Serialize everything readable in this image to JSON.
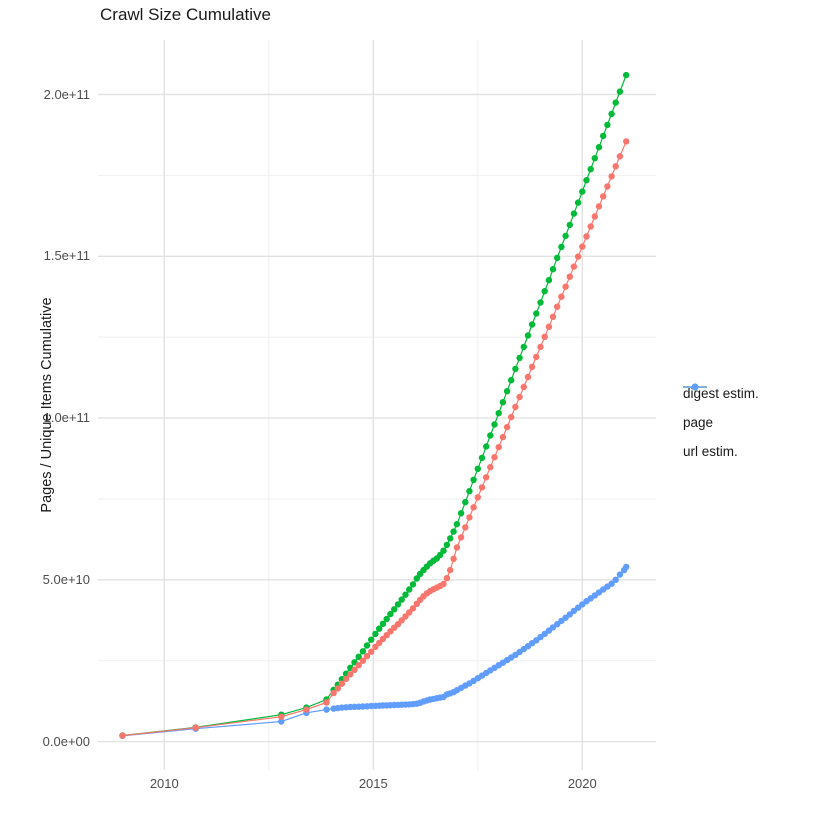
{
  "title": "Crawl Size Cumulative",
  "axes": {
    "y_title": "Pages / Unique Items Cumulative",
    "y_tick_labels": [
      "0.0e+00",
      "5.0e+10",
      "1.0e+11",
      "1.5e+11",
      "2.0e+11"
    ],
    "x_tick_labels": [
      "2010",
      "2015",
      "2020"
    ]
  },
  "legend": {
    "items": [
      {
        "label": "digest estim.",
        "color": "#F8766D"
      },
      {
        "label": "page",
        "color": "#00BA38"
      },
      {
        "label": "url estim.",
        "color": "#619CFF"
      }
    ]
  },
  "chart_data": {
    "type": "scatter",
    "title": "Crawl Size Cumulative",
    "xlabel": "",
    "ylabel": "Pages / Unique Items Cumulative",
    "x_unit": "year (monthly crawls)",
    "value_scale": 1000000000.0,
    "xlim": [
      2008.6,
      2021.75
    ],
    "ylim": [
      0,
      217000000000.0
    ],
    "x_ticks": [
      2010,
      2015,
      2020
    ],
    "x_minor_ticks": [
      2012.5,
      2017.5
    ],
    "y_ticks_e9": [
      0,
      50,
      100,
      150,
      200
    ],
    "y_minor_ticks_e9": [
      25,
      75,
      125,
      175
    ],
    "grid": true,
    "legend_position": "right",
    "marker": "point-with-line",
    "series": [
      {
        "name": "digest estim.",
        "color": "#F8766D",
        "points": [
          [
            2009.0,
            1.85
          ],
          [
            2010.75,
            4.3
          ],
          [
            2012.8,
            7.7
          ],
          [
            2013.4,
            9.9
          ],
          [
            2013.88,
            12.1
          ],
          [
            2014.05,
            15.0
          ],
          [
            2014.15,
            16.4
          ],
          [
            2014.25,
            17.9
          ],
          [
            2014.35,
            19.4
          ],
          [
            2014.45,
            20.8
          ],
          [
            2014.55,
            22.2
          ],
          [
            2014.65,
            23.6
          ],
          [
            2014.75,
            25.0
          ],
          [
            2014.85,
            26.4
          ],
          [
            2014.95,
            27.8
          ],
          [
            2015.05,
            29.3
          ],
          [
            2015.14,
            30.5
          ],
          [
            2015.23,
            31.7
          ],
          [
            2015.32,
            32.9
          ],
          [
            2015.41,
            34.1
          ],
          [
            2015.5,
            35.2
          ],
          [
            2015.59,
            36.3
          ],
          [
            2015.68,
            37.5
          ],
          [
            2015.77,
            38.7
          ],
          [
            2015.86,
            39.9
          ],
          [
            2015.95,
            41.2
          ],
          [
            2016.04,
            42.6
          ],
          [
            2016.12,
            43.8
          ],
          [
            2016.2,
            44.9
          ],
          [
            2016.28,
            45.8
          ],
          [
            2016.36,
            46.5
          ],
          [
            2016.44,
            47.1
          ],
          [
            2016.52,
            47.6
          ],
          [
            2016.6,
            48.1
          ],
          [
            2016.68,
            48.7
          ],
          [
            2016.76,
            50.5
          ],
          [
            2016.84,
            53.0
          ],
          [
            2016.92,
            56.5
          ],
          [
            2017.0,
            60.0
          ],
          [
            2017.1,
            63.1
          ],
          [
            2017.2,
            66.2
          ],
          [
            2017.3,
            69.3
          ],
          [
            2017.4,
            72.4
          ],
          [
            2017.5,
            75.5
          ],
          [
            2017.6,
            78.6
          ],
          [
            2017.7,
            81.7
          ],
          [
            2017.8,
            84.8
          ],
          [
            2017.9,
            87.9
          ],
          [
            2018.0,
            91.0
          ],
          [
            2018.1,
            94.1
          ],
          [
            2018.2,
            97.2
          ],
          [
            2018.3,
            100.3
          ],
          [
            2018.4,
            103.4
          ],
          [
            2018.5,
            106.5
          ],
          [
            2018.6,
            109.6
          ],
          [
            2018.7,
            112.7
          ],
          [
            2018.8,
            115.8
          ],
          [
            2018.9,
            118.9
          ],
          [
            2019.0,
            122.0
          ],
          [
            2019.1,
            125.1
          ],
          [
            2019.2,
            128.2
          ],
          [
            2019.3,
            131.3
          ],
          [
            2019.4,
            134.4
          ],
          [
            2019.5,
            137.5
          ],
          [
            2019.6,
            140.6
          ],
          [
            2019.7,
            143.7
          ],
          [
            2019.8,
            146.8
          ],
          [
            2019.9,
            149.9
          ],
          [
            2020.0,
            153.0
          ],
          [
            2020.1,
            156.1
          ],
          [
            2020.2,
            159.2
          ],
          [
            2020.3,
            162.3
          ],
          [
            2020.4,
            165.4
          ],
          [
            2020.5,
            168.5
          ],
          [
            2020.6,
            171.6
          ],
          [
            2020.7,
            174.7
          ],
          [
            2020.8,
            177.8
          ],
          [
            2020.9,
            180.9
          ],
          [
            2021.05,
            185.5
          ]
        ]
      },
      {
        "name": "page",
        "color": "#00BA38",
        "points": [
          [
            2009.0,
            1.9
          ],
          [
            2010.75,
            4.4
          ],
          [
            2012.8,
            8.3
          ],
          [
            2013.4,
            10.5
          ],
          [
            2013.88,
            13.0
          ],
          [
            2014.05,
            16.0
          ],
          [
            2014.15,
            17.6
          ],
          [
            2014.25,
            19.3
          ],
          [
            2014.35,
            21.0
          ],
          [
            2014.45,
            22.8
          ],
          [
            2014.55,
            24.5
          ],
          [
            2014.65,
            26.2
          ],
          [
            2014.75,
            27.9
          ],
          [
            2014.85,
            29.7
          ],
          [
            2014.95,
            31.5
          ],
          [
            2015.05,
            33.3
          ],
          [
            2015.14,
            34.9
          ],
          [
            2015.23,
            36.4
          ],
          [
            2015.32,
            37.9
          ],
          [
            2015.41,
            39.4
          ],
          [
            2015.5,
            40.9
          ],
          [
            2015.59,
            42.4
          ],
          [
            2015.68,
            43.9
          ],
          [
            2015.77,
            45.4
          ],
          [
            2015.86,
            47.0
          ],
          [
            2015.95,
            48.6
          ],
          [
            2016.04,
            50.4
          ],
          [
            2016.12,
            51.8
          ],
          [
            2016.2,
            53.0
          ],
          [
            2016.28,
            54.1
          ],
          [
            2016.36,
            55.1
          ],
          [
            2016.44,
            55.9
          ],
          [
            2016.52,
            56.6
          ],
          [
            2016.6,
            57.7
          ],
          [
            2016.68,
            59.0
          ],
          [
            2016.76,
            60.8
          ],
          [
            2016.84,
            62.8
          ],
          [
            2016.92,
            64.9
          ],
          [
            2017.0,
            67.2
          ],
          [
            2017.1,
            70.6
          ],
          [
            2017.2,
            74.0
          ],
          [
            2017.3,
            77.4
          ],
          [
            2017.4,
            80.9
          ],
          [
            2017.5,
            84.3
          ],
          [
            2017.6,
            87.7
          ],
          [
            2017.7,
            91.2
          ],
          [
            2017.8,
            94.6
          ],
          [
            2017.9,
            98.0
          ],
          [
            2018.0,
            101.5
          ],
          [
            2018.1,
            104.9
          ],
          [
            2018.2,
            108.3
          ],
          [
            2018.3,
            111.7
          ],
          [
            2018.4,
            115.2
          ],
          [
            2018.5,
            118.6
          ],
          [
            2018.6,
            122.0
          ],
          [
            2018.7,
            125.5
          ],
          [
            2018.8,
            128.9
          ],
          [
            2018.9,
            132.3
          ],
          [
            2019.0,
            135.7
          ],
          [
            2019.1,
            139.2
          ],
          [
            2019.2,
            142.6
          ],
          [
            2019.3,
            146.0
          ],
          [
            2019.4,
            149.5
          ],
          [
            2019.5,
            152.9
          ],
          [
            2019.6,
            156.3
          ],
          [
            2019.7,
            159.7
          ],
          [
            2019.8,
            163.2
          ],
          [
            2019.9,
            166.6
          ],
          [
            2020.0,
            170.0
          ],
          [
            2020.1,
            173.5
          ],
          [
            2020.2,
            176.9
          ],
          [
            2020.3,
            180.3
          ],
          [
            2020.4,
            183.7
          ],
          [
            2020.5,
            187.2
          ],
          [
            2020.6,
            190.6
          ],
          [
            2020.7,
            194.0
          ],
          [
            2020.8,
            197.5
          ],
          [
            2020.9,
            200.9
          ],
          [
            2021.05,
            206.0
          ]
        ]
      },
      {
        "name": "url estim.",
        "color": "#619CFF",
        "points": [
          [
            2009.0,
            1.8
          ],
          [
            2010.75,
            4.0
          ],
          [
            2012.8,
            6.2
          ],
          [
            2013.4,
            8.9
          ],
          [
            2013.88,
            9.9
          ],
          [
            2014.05,
            10.2
          ],
          [
            2014.15,
            10.35
          ],
          [
            2014.25,
            10.5
          ],
          [
            2014.35,
            10.6
          ],
          [
            2014.45,
            10.7
          ],
          [
            2014.55,
            10.75
          ],
          [
            2014.65,
            10.8
          ],
          [
            2014.75,
            10.85
          ],
          [
            2014.85,
            10.9
          ],
          [
            2014.95,
            11.0
          ],
          [
            2015.05,
            11.05
          ],
          [
            2015.14,
            11.1
          ],
          [
            2015.23,
            11.15
          ],
          [
            2015.32,
            11.2
          ],
          [
            2015.41,
            11.25
          ],
          [
            2015.5,
            11.3
          ],
          [
            2015.59,
            11.35
          ],
          [
            2015.68,
            11.4
          ],
          [
            2015.77,
            11.45
          ],
          [
            2015.86,
            11.5
          ],
          [
            2015.95,
            11.6
          ],
          [
            2016.04,
            11.7
          ],
          [
            2016.12,
            12.0
          ],
          [
            2016.2,
            12.4
          ],
          [
            2016.28,
            12.7
          ],
          [
            2016.36,
            13.0
          ],
          [
            2016.44,
            13.2
          ],
          [
            2016.52,
            13.4
          ],
          [
            2016.6,
            13.6
          ],
          [
            2016.68,
            13.8
          ],
          [
            2016.76,
            14.6
          ],
          [
            2016.84,
            14.9
          ],
          [
            2016.92,
            15.3
          ],
          [
            2017.0,
            15.9
          ],
          [
            2017.1,
            16.6
          ],
          [
            2017.2,
            17.3
          ],
          [
            2017.3,
            18.0
          ],
          [
            2017.4,
            18.8
          ],
          [
            2017.5,
            19.6
          ],
          [
            2017.6,
            20.4
          ],
          [
            2017.7,
            21.2
          ],
          [
            2017.8,
            22.0
          ],
          [
            2017.9,
            22.8
          ],
          [
            2018.0,
            23.6
          ],
          [
            2018.1,
            24.4
          ],
          [
            2018.2,
            25.2
          ],
          [
            2018.3,
            26.0
          ],
          [
            2018.4,
            26.8
          ],
          [
            2018.5,
            27.7
          ],
          [
            2018.6,
            28.6
          ],
          [
            2018.7,
            29.5
          ],
          [
            2018.8,
            30.4
          ],
          [
            2018.9,
            31.3
          ],
          [
            2019.0,
            32.3
          ],
          [
            2019.1,
            33.3
          ],
          [
            2019.2,
            34.3
          ],
          [
            2019.3,
            35.3
          ],
          [
            2019.4,
            36.3
          ],
          [
            2019.5,
            37.3
          ],
          [
            2019.6,
            38.3
          ],
          [
            2019.7,
            39.3
          ],
          [
            2019.8,
            40.4
          ],
          [
            2019.9,
            41.4
          ],
          [
            2020.0,
            42.4
          ],
          [
            2020.1,
            43.4
          ],
          [
            2020.2,
            44.3
          ],
          [
            2020.3,
            45.2
          ],
          [
            2020.4,
            46.1
          ],
          [
            2020.5,
            47.0
          ],
          [
            2020.6,
            47.9
          ],
          [
            2020.7,
            48.8
          ],
          [
            2020.8,
            50.0
          ],
          [
            2020.9,
            51.6
          ],
          [
            2021.0,
            53.0
          ],
          [
            2021.05,
            54.0
          ]
        ]
      }
    ],
    "style": {
      "grid_major_color": "#e2e2e2",
      "grid_minor_color": "#efefef",
      "background": "#ffffff",
      "point_radius": 3.2,
      "line_width": 1.2
    }
  }
}
